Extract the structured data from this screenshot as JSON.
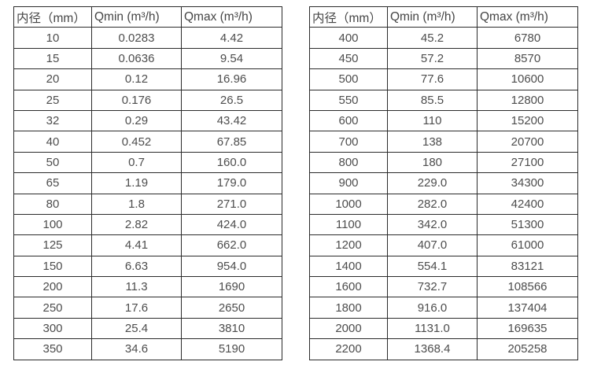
{
  "colors": {
    "background": "#ffffff",
    "table_border": "#2b2b2b",
    "text": "#4d4d4d"
  },
  "tables": [
    {
      "name": "flow-range-table-small-diameters",
      "headers": [
        "内径（mm）",
        "Qmin (m³/h)",
        "Qmax (m³/h)"
      ],
      "rows": [
        [
          "10",
          "0.0283",
          "4.42"
        ],
        [
          "15",
          "0.0636",
          "9.54"
        ],
        [
          "20",
          "0.12",
          "16.96"
        ],
        [
          "25",
          "0.176",
          "26.5"
        ],
        [
          "32",
          "0.29",
          "43.42"
        ],
        [
          "40",
          "0.452",
          "67.85"
        ],
        [
          "50",
          "0.7",
          "160.0"
        ],
        [
          "65",
          "1.19",
          "179.0"
        ],
        [
          "80",
          "1.8",
          "271.0"
        ],
        [
          "100",
          "2.82",
          "424.0"
        ],
        [
          "125",
          "4.41",
          "662.0"
        ],
        [
          "150",
          "6.63",
          "954.0"
        ],
        [
          "200",
          "11.3",
          "1690"
        ],
        [
          "250",
          "17.6",
          "2650"
        ],
        [
          "300",
          "25.4",
          "3810"
        ],
        [
          "350",
          "34.6",
          "5190"
        ]
      ]
    },
    {
      "name": "flow-range-table-large-diameters",
      "headers": [
        "内径（mm）",
        "Qmin (m³/h)",
        "Qmax (m³/h)"
      ],
      "rows": [
        [
          "400",
          "45.2",
          "6780"
        ],
        [
          "450",
          "57.2",
          "8570"
        ],
        [
          "500",
          "77.6",
          "10600"
        ],
        [
          "550",
          "85.5",
          "12800"
        ],
        [
          "600",
          "110",
          "15200"
        ],
        [
          "700",
          "138",
          "20700"
        ],
        [
          "800",
          "180",
          "27100"
        ],
        [
          "900",
          "229.0",
          "34300"
        ],
        [
          "1000",
          "282.0",
          "42400"
        ],
        [
          "1100",
          "342.0",
          "51300"
        ],
        [
          "1200",
          "407.0",
          "61000"
        ],
        [
          "1400",
          "554.1",
          "83121"
        ],
        [
          "1600",
          "732.7",
          "108566"
        ],
        [
          "1800",
          "916.0",
          "137404"
        ],
        [
          "2000",
          "1131.0",
          "169635"
        ],
        [
          "2200",
          "1368.4",
          "205258"
        ]
      ]
    }
  ],
  "chart_data": [
    {
      "type": "table",
      "title": "",
      "columns": [
        "内径（mm）",
        "Qmin (m³/h)",
        "Qmax (m³/h)"
      ],
      "inner_diameter_mm": [
        10,
        15,
        20,
        25,
        32,
        40,
        50,
        65,
        80,
        100,
        125,
        150,
        200,
        250,
        300,
        350
      ],
      "qmin_m3_per_h": [
        0.0283,
        0.0636,
        0.12,
        0.176,
        0.29,
        0.452,
        0.7,
        1.19,
        1.8,
        2.82,
        4.41,
        6.63,
        11.3,
        17.6,
        25.4,
        34.6
      ],
      "qmax_m3_per_h": [
        4.42,
        9.54,
        16.96,
        26.5,
        43.42,
        67.85,
        160.0,
        179.0,
        271.0,
        424.0,
        662.0,
        954.0,
        1690,
        2650,
        3810,
        5190
      ]
    },
    {
      "type": "table",
      "title": "",
      "columns": [
        "内径（mm）",
        "Qmin (m³/h)",
        "Qmax (m³/h)"
      ],
      "inner_diameter_mm": [
        400,
        450,
        500,
        550,
        600,
        700,
        800,
        900,
        1000,
        1100,
        1200,
        1400,
        1600,
        1800,
        2000,
        2200
      ],
      "qmin_m3_per_h": [
        45.2,
        57.2,
        77.6,
        85.5,
        110,
        138,
        180,
        229.0,
        282.0,
        342.0,
        407.0,
        554.1,
        732.7,
        916.0,
        1131.0,
        1368.4
      ],
      "qmax_m3_per_h": [
        6780,
        8570,
        10600,
        12800,
        15200,
        20700,
        27100,
        34300,
        42400,
        51300,
        61000,
        83121,
        108566,
        137404,
        169635,
        205258
      ]
    }
  ]
}
